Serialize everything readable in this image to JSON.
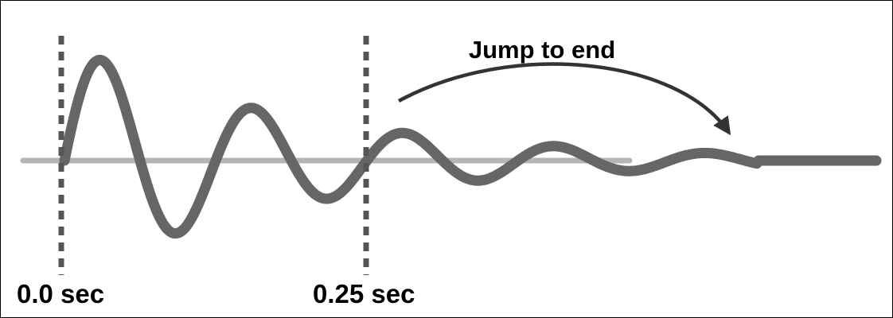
{
  "diagram": {
    "title": "Jump to end",
    "markers": [
      {
        "label": "0.0 sec",
        "time_sec": 0.0
      },
      {
        "label": "0.25 sec",
        "time_sec": 0.25
      }
    ]
  },
  "colors": {
    "wave": "#666666",
    "baseline": "#b5b5b5",
    "marker": "#555555",
    "arrow": "#333333",
    "text": "#000000"
  }
}
